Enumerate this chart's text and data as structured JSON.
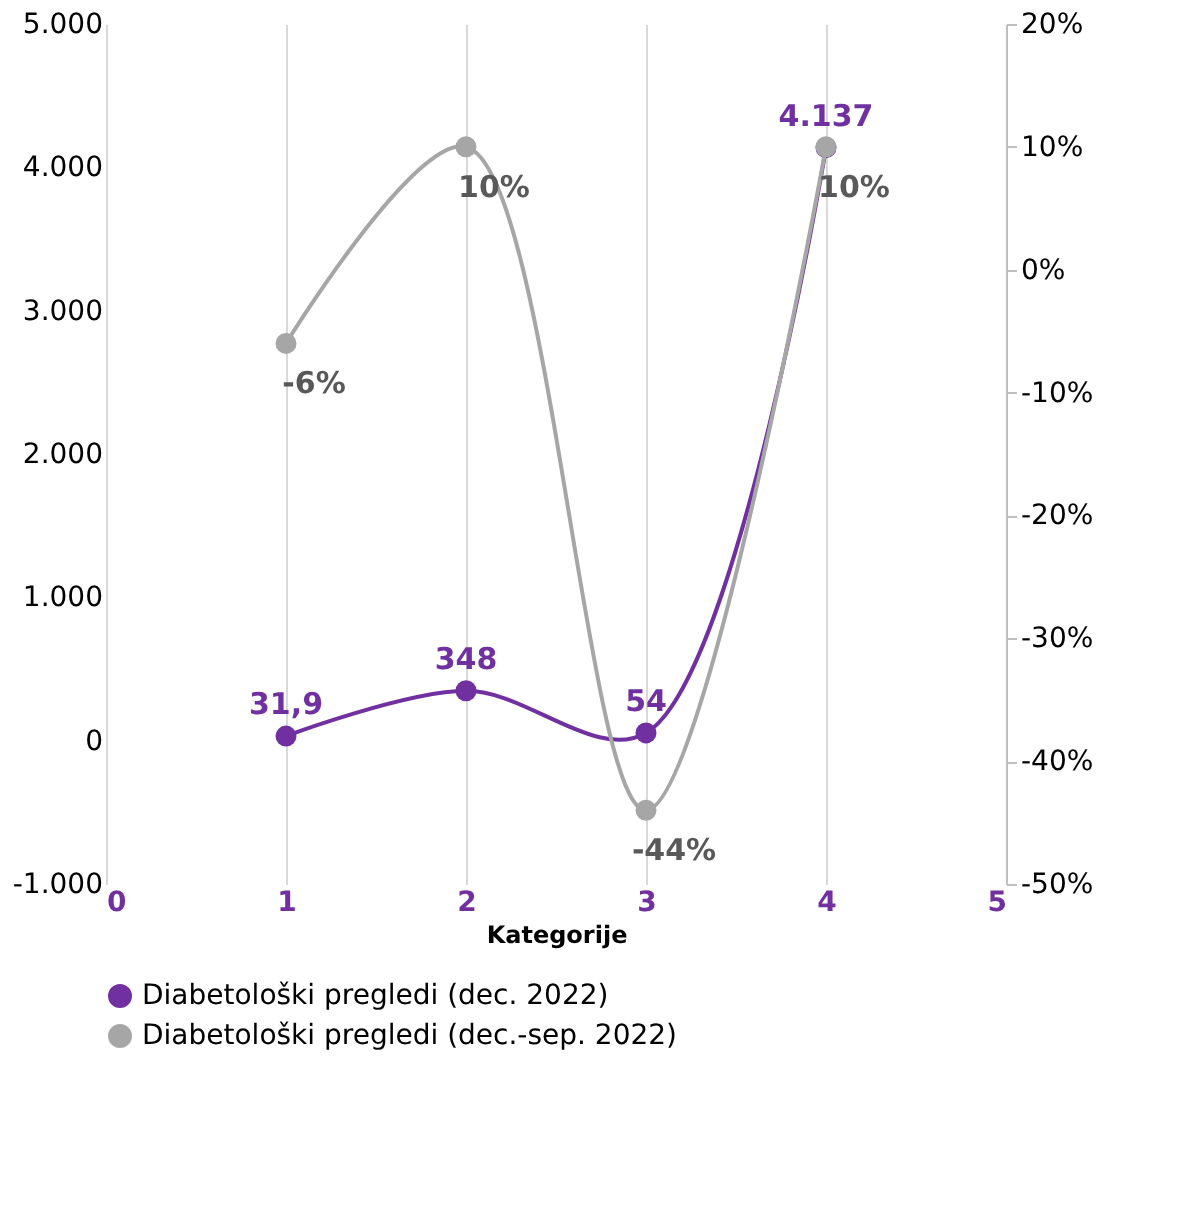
{
  "chart_data": {
    "type": "line",
    "xlabel": "Kategorije",
    "x": [
      1,
      2,
      3,
      4
    ],
    "xlim": [
      0,
      5
    ],
    "xticks": [
      0,
      1,
      2,
      3,
      4,
      5
    ],
    "ylim": [
      -1000,
      5000
    ],
    "yticks": [
      {
        "value": -1000,
        "label": "-1.000"
      },
      0,
      {
        "value": 1000,
        "label": "1.000"
      },
      {
        "value": 2000,
        "label": "2.000"
      },
      {
        "value": 3000,
        "label": "3.000"
      },
      {
        "value": 4000,
        "label": "4.000"
      },
      {
        "value": 5000,
        "label": "5.000"
      }
    ],
    "y2lim": [
      -50,
      20
    ],
    "y2ticks": [
      {
        "value": -50,
        "label": "-50%"
      },
      {
        "value": -40,
        "label": "-40%"
      },
      {
        "value": -30,
        "label": "-30%"
      },
      {
        "value": -20,
        "label": "-20%"
      },
      {
        "value": -10,
        "label": "-10%"
      },
      {
        "value": 0,
        "label": "0%"
      },
      {
        "value": 10,
        "label": "10%"
      },
      {
        "value": 20,
        "label": "20%"
      }
    ],
    "series": [
      {
        "name": "Diabetološki pregledi (dec. 2022)",
        "color": "#7030a0",
        "values": [
          31.9,
          348,
          54,
          4137
        ],
        "value_labels": [
          "31,9",
          "348",
          "54",
          "4.137"
        ]
      },
      {
        "name": "Diabetološki pregledi (dec.-sep. 2022)",
        "color": "#a6a6a6",
        "axis": "y2",
        "values": [
          -6,
          10,
          -44,
          10
        ],
        "value_labels": [
          "-6%",
          "10%",
          "-44%",
          "10%"
        ]
      }
    ],
    "grid": "x",
    "legend": "bottom",
    "marker": "circle",
    "line_style": "solid"
  }
}
